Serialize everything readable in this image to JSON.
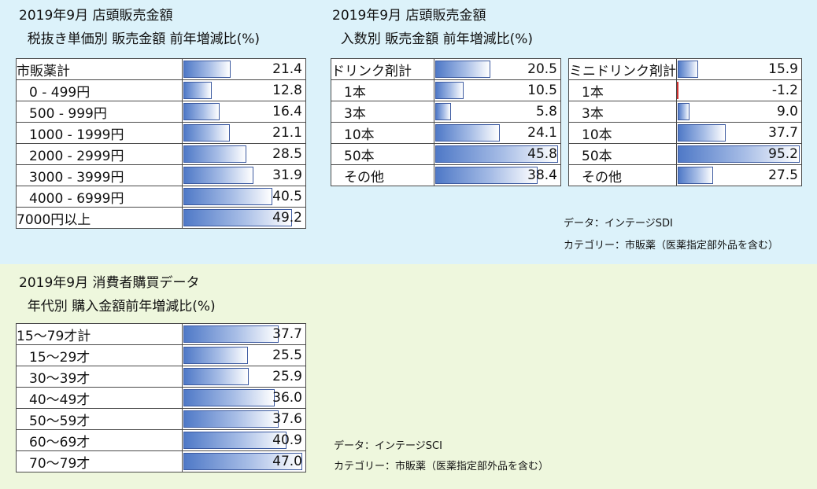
{
  "colors": {
    "top_panel": "#dcf2fa",
    "bottom_panel": "#eef7dd",
    "bar": "#4f79c7"
  },
  "tables": {
    "price": {
      "title_line1": "2019年9月 店頭販売金額",
      "title_line2": "  税抜き単価別 販売金額 前年増減比(%)",
      "max": 55,
      "rows": [
        {
          "label": "市販薬計",
          "value": "21.4",
          "indent": false
        },
        {
          "label": "0 - 499円",
          "value": "12.8",
          "indent": true
        },
        {
          "label": "500 - 999円",
          "value": "16.4",
          "indent": true
        },
        {
          "label": "1000 - 1999円",
          "value": "21.1",
          "indent": true
        },
        {
          "label": "2000 - 2999円",
          "value": "28.5",
          "indent": true
        },
        {
          "label": "3000 - 3999円",
          "value": "31.9",
          "indent": true
        },
        {
          "label": "4000 - 6999円",
          "value": "40.5",
          "indent": true
        },
        {
          "label": "7000円以上",
          "value": "49.2",
          "indent": false
        }
      ]
    },
    "drink": {
      "title_line1": "2019年9月 店頭販売金額",
      "title_line2": "  入数別 販売金額 前年増減比(%)",
      "max": 46.5,
      "rows": [
        {
          "label": "ドリンク剤計",
          "value": "20.5",
          "indent": false
        },
        {
          "label": "1本",
          "value": "10.5",
          "indent": true
        },
        {
          "label": "3本",
          "value": "5.8",
          "indent": true
        },
        {
          "label": "10本",
          "value": "24.1",
          "indent": true
        },
        {
          "label": "50本",
          "value": "45.8",
          "indent": true
        },
        {
          "label": "その他",
          "value": "38.4",
          "indent": true
        }
      ]
    },
    "mini": {
      "max": 96,
      "rows": [
        {
          "label": "ミニドリンク剤計",
          "value": "15.9",
          "indent": false
        },
        {
          "label": "1本",
          "value": "-1.2",
          "indent": true
        },
        {
          "label": "3本",
          "value": "9.0",
          "indent": true
        },
        {
          "label": "10本",
          "value": "37.7",
          "indent": true
        },
        {
          "label": "50本",
          "value": "95.2",
          "indent": true
        },
        {
          "label": "その他",
          "value": "27.5",
          "indent": true
        }
      ]
    },
    "age": {
      "title_line1": "2019年9月 消費者購買データ",
      "title_line2": "  年代別 購入金額前年増減比(%)",
      "max": 48,
      "rows": [
        {
          "label": "15～79才計",
          "value": "37.7",
          "indent": false
        },
        {
          "label": "15～29才",
          "value": "25.5",
          "indent": true
        },
        {
          "label": "30～39才",
          "value": "25.9",
          "indent": true
        },
        {
          "label": "40～49才",
          "value": "36.0",
          "indent": true
        },
        {
          "label": "50～59才",
          "value": "37.6",
          "indent": true
        },
        {
          "label": "60～69才",
          "value": "40.9",
          "indent": true
        },
        {
          "label": "70～79才",
          "value": "47.0",
          "indent": true
        }
      ]
    }
  },
  "notes": {
    "top_source": "データ：インテージSDI",
    "top_category": "カテゴリー：市販薬（医薬指定部外品を含む）",
    "bottom_source": "データ：インテージSCI",
    "bottom_category": "カテゴリー：市販薬（医薬指定部外品を含む）"
  }
}
